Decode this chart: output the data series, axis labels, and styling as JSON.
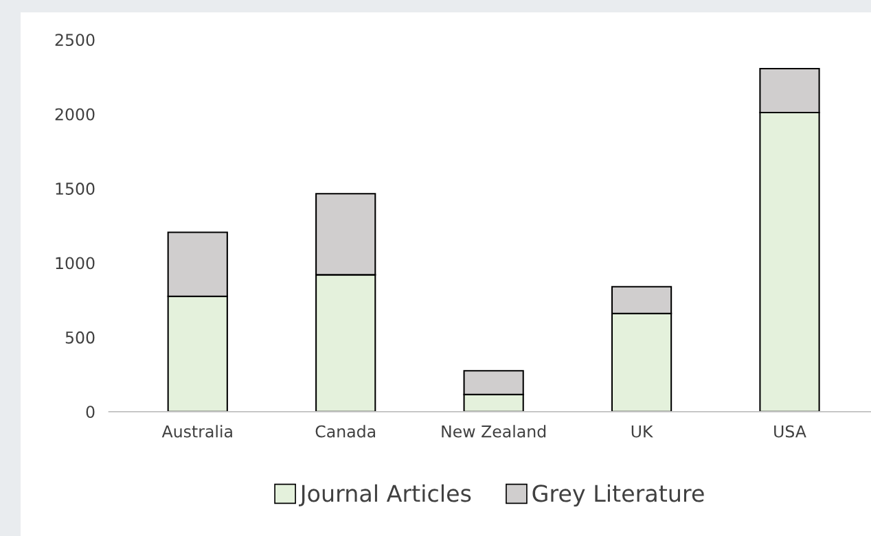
{
  "chart_data": {
    "type": "bar",
    "stacked": true,
    "categories": [
      "Australia",
      "Canada",
      "New Zealand",
      "UK",
      "USA"
    ],
    "series": [
      {
        "name": "Journal Articles",
        "color": "#e4f1dc",
        "values": [
          775,
          920,
          115,
          660,
          2010
        ]
      },
      {
        "name": "Grey Literature",
        "color": "#d0cece",
        "values": [
          430,
          545,
          160,
          180,
          295
        ]
      }
    ],
    "ylim": [
      0,
      2500
    ],
    "yticks": [
      0,
      500,
      1000,
      1500,
      2000,
      2500
    ],
    "grid": false,
    "legend": "bottom"
  }
}
